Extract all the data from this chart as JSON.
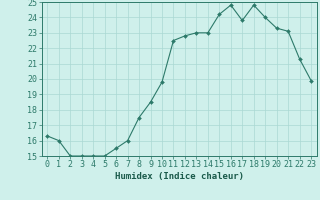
{
  "x": [
    0,
    1,
    2,
    3,
    4,
    5,
    6,
    7,
    8,
    9,
    10,
    11,
    12,
    13,
    14,
    15,
    16,
    17,
    18,
    19,
    20,
    21,
    22,
    23
  ],
  "y": [
    16.3,
    16.0,
    15.0,
    15.0,
    15.0,
    15.0,
    15.5,
    16.0,
    17.5,
    18.5,
    19.8,
    22.5,
    22.8,
    23.0,
    23.0,
    24.2,
    24.8,
    23.8,
    24.8,
    24.0,
    23.3,
    23.1,
    21.3,
    19.9
  ],
  "xlabel": "Humidex (Indice chaleur)",
  "ylim": [
    15,
    25
  ],
  "xlim_min": -0.5,
  "xlim_max": 23.5,
  "yticks": [
    15,
    16,
    17,
    18,
    19,
    20,
    21,
    22,
    23,
    24,
    25
  ],
  "xticks": [
    0,
    1,
    2,
    3,
    4,
    5,
    6,
    7,
    8,
    9,
    10,
    11,
    12,
    13,
    14,
    15,
    16,
    17,
    18,
    19,
    20,
    21,
    22,
    23
  ],
  "xtick_labels": [
    "0",
    "1",
    "2",
    "3",
    "4",
    "5",
    "6",
    "7",
    "8",
    "9",
    "10",
    "11",
    "12",
    "13",
    "14",
    "15",
    "16",
    "17",
    "18",
    "19",
    "20",
    "21",
    "22",
    "23"
  ],
  "line_color": "#2d7a6a",
  "marker_color": "#2d7a6a",
  "bg_color": "#cff0eb",
  "grid_color": "#aad8d3",
  "axis_color": "#2d7a6a",
  "tick_color": "#2d7a6a",
  "label_color": "#1a5a4a",
  "xlabel_fontsize": 6.5,
  "tick_fontsize": 6.0
}
